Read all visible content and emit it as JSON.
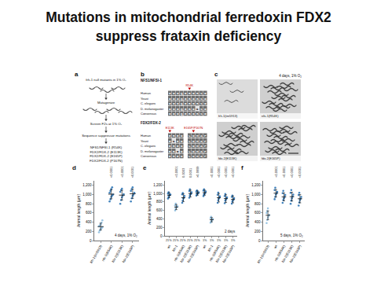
{
  "title": [
    "Mutations in mitochondrial ferredoxin FDX2",
    "suppress frataxin deficiency"
  ],
  "panel_a": {
    "panel": "a",
    "start": "frh-1 null mutants in 1% O₂",
    "steps": [
      "Mutagenize",
      "Screen F2s at 1% O₂",
      "Sequence suppressor mutations"
    ],
    "results": [
      "NFS1/NFSI-1 (R54K)",
      "FDX2/FDX-2 (E113K)",
      "FDX2/FDX-2 (E165P)",
      "FDX2/FDX-2 (P167N)"
    ]
  },
  "panel_b": {
    "panel": "b",
    "blocks": [
      {
        "gene": "NFS1/NFSI-1",
        "markers": [
          {
            "column": 5,
            "label": "R54K"
          }
        ],
        "rows": [
          {
            "species": "Human",
            "sequence": "GGGQERGRSG"
          },
          {
            "species": "Yeast",
            "sequence": "GGGQERGRSG"
          },
          {
            "species": "C. elegans",
            "sequence": "GGGQERGRSG"
          },
          {
            "species": "D. melanogaster",
            "sequence": "GGGQERGKSG"
          },
          {
            "species": "Consensus",
            "sequence": "GGGQERGRSG"
          }
        ]
      },
      {
        "gene": "FDX2/FDX-2",
        "markers": [
          {
            "column": 0,
            "label": "E113K"
          },
          {
            "column": 6,
            "label": "E165P/P167N"
          }
        ],
        "rows": [
          {
            "species": "Human",
            "sequence": "ERED LDMAP"
          },
          {
            "species": "Yeast",
            "sequence": "EKED LDMAP"
          },
          {
            "species": "C. elegans",
            "sequence": "ERED LDMAP"
          },
          {
            "species": "D. melanogaster",
            "sequence": "ERDD LDMAP"
          },
          {
            "species": "Consensus",
            "sequence": "ERED LDMAP"
          }
        ]
      }
    ]
  },
  "panel_c": {
    "panel": "c",
    "title": "4 days, 1% O₂",
    "images": [
      "frh-1(tm5913)",
      "nfs-1(R54K)",
      "fdx-2(E113K)",
      "fdx-2(E165P)"
    ]
  },
  "chart_data": [
    {
      "type": "scatter",
      "panel": "d",
      "marker": "circle",
      "grid": false,
      "categories": [
        "frh-1(tm5913)",
        "nfs-1(R54K)",
        "fdx-2(E113K)",
        "fdx-2(E165P)"
      ],
      "values": [
        [
          180,
          220,
          250,
          270,
          290,
          310,
          330,
          350,
          390,
          440
        ],
        [
          850,
          900,
          950,
          980,
          1000,
          1040,
          1080,
          1120,
          1160
        ],
        [
          800,
          880,
          940,
          980,
          1010,
          1060,
          1100,
          1130
        ],
        [
          850,
          920,
          970,
          1000,
          1040,
          1080,
          1120,
          1160
        ]
      ],
      "mean": [
        303,
        1009,
        988,
        1018
      ],
      "sd": [
        75,
        100,
        105,
        100
      ],
      "colors": [
        "#8fbfe0",
        "#2e75b6",
        "#2e75b6",
        "#2e75b6"
      ],
      "pvalues": [
        null,
        "<0.0001",
        "<0.0001",
        "<0.0001"
      ],
      "annotations": [
        "4 days, 1% O₂"
      ],
      "ylabel": "Animal length (µm)",
      "ylim": [
        0,
        1300
      ],
      "yticks": [
        0,
        200,
        400,
        600,
        800,
        {
          "value": 1000,
          "label": "1,000"
        },
        {
          "value": 1200,
          "label": "1,200"
        }
      ]
    },
    {
      "type": "scatter",
      "panel": "e",
      "marker": "circle",
      "grid": false,
      "categories": [
        "wt",
        "frh-1",
        "nfs-1(R54K)",
        "fdx-2(E113K)",
        "fdx-2(E165P)",
        "wt",
        "frh-1",
        "nfs-1(R54K)",
        "fdx-2(E113K)",
        "fdx-2(E165P)"
      ],
      "conditions": [
        "21%",
        "21%",
        "21%",
        "21%",
        "21%",
        "1%",
        "1%",
        "1%",
        "1%",
        "1%"
      ],
      "values": [
        [
          880,
          920,
          950,
          960,
          980,
          1000,
          1030
        ],
        [
          600,
          640,
          670,
          690,
          700,
          720,
          760
        ],
        [
          780,
          830,
          880,
          900,
          940,
          980,
          1010
        ],
        [
          900,
          950,
          980,
          1000,
          1030,
          1060,
          1100
        ],
        [
          950,
          980,
          1000,
          1010,
          1030,
          1050,
          1070
        ],
        [
          940,
          980,
          1000,
          1020,
          1050,
          1070,
          1100
        ],
        [
          310,
          340,
          360,
          380,
          400,
          420,
          450
        ],
        [
          780,
          840,
          880,
          900,
          930,
          970,
          1020
        ],
        [
          770,
          830,
          860,
          880,
          910,
          940,
          990
        ],
        [
          760,
          810,
          840,
          860,
          890,
          920,
          950
        ]
      ],
      "mean": [
        960,
        680,
        900,
        1000,
        1010,
        1020,
        380,
        900,
        880,
        860
      ],
      "sd": [
        60,
        60,
        90,
        80,
        50,
        60,
        50,
        100,
        90,
        80
      ],
      "colors": [
        "#2e75b6",
        "#8fbfe0",
        "#2e75b6",
        "#2e75b6",
        "#2e75b6",
        "#2e75b6",
        "#8fbfe0",
        "#2e75b6",
        "#2e75b6",
        "#2e75b6"
      ],
      "pvalues": [
        null,
        "<0.0001",
        "0.0003",
        "0.0001",
        ">0.9999",
        null,
        "<0.0001",
        "<0.0001",
        "<0.0001",
        "<0.0001"
      ],
      "annotations": [
        "2 days"
      ],
      "ylabel": "Animal length (µm)",
      "ylim": [
        0,
        1300
      ],
      "yticks": [
        0,
        200,
        400,
        600,
        800,
        {
          "value": 1000,
          "label": "1,000"
        },
        {
          "value": 1200,
          "label": "1,200"
        }
      ]
    },
    {
      "type": "scatter",
      "panel": "f",
      "marker": "circle",
      "grid": false,
      "categories": [
        "frh-1(tm5913)",
        "wt",
        "nfs-1(R54K)",
        "fdx-2(E113K)",
        "fdx-2(E165P)"
      ],
      "values": [
        [
          380,
          450,
          500,
          540,
          560,
          600,
          640,
          700
        ],
        [
          900,
          950,
          1000,
          1030,
          1060,
          1100,
          1150
        ],
        [
          820,
          880,
          920,
          950,
          990,
          1030,
          1080
        ],
        [
          800,
          870,
          920,
          960,
          1000,
          1040,
          1100
        ],
        [
          760,
          830,
          880,
          910,
          950,
          990,
          1040
        ]
      ],
      "mean": [
        550,
        1030,
        950,
        955,
        910
      ],
      "sd": [
        95,
        80,
        85,
        95,
        90
      ],
      "colors": [
        "#8fbfe0",
        "#2e75b6",
        "#2e75b6",
        "#2e75b6",
        "#2e75b6"
      ],
      "pvalues": [
        null,
        "<0.0001",
        "<0.0001",
        "<0.0001",
        "<0.0001"
      ],
      "annotations": [
        "5 days, 1% O₂"
      ],
      "ylabel": "Animal length (µm)",
      "ylim": [
        0,
        1300
      ],
      "yticks": [
        0,
        200,
        400,
        600,
        800,
        {
          "value": 1000,
          "label": "1,000"
        },
        {
          "value": 1200,
          "label": "1,200"
        }
      ]
    }
  ]
}
